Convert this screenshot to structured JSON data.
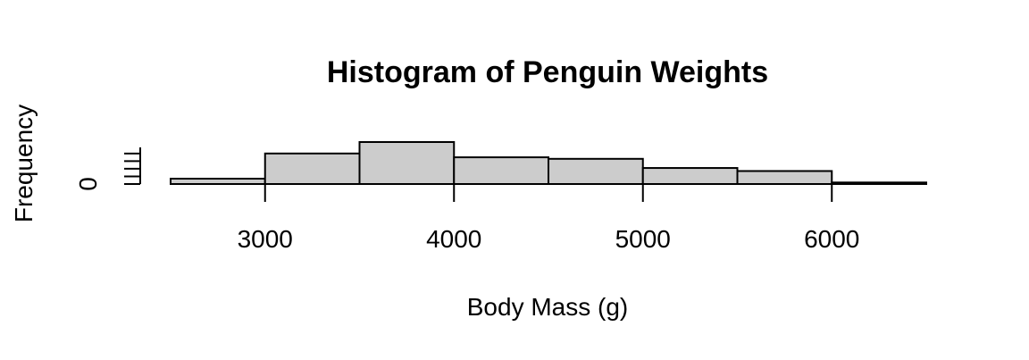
{
  "chart_data": {
    "type": "bar",
    "title": "Histogram of Penguin Weights",
    "xlabel": "Body Mass (g)",
    "ylabel": "Frequency",
    "bins": [
      {
        "start": 2500,
        "end": 3000,
        "count": 7
      },
      {
        "start": 3000,
        "end": 3500,
        "count": 40
      },
      {
        "start": 3500,
        "end": 4000,
        "count": 55
      },
      {
        "start": 4000,
        "end": 4500,
        "count": 35
      },
      {
        "start": 4500,
        "end": 5000,
        "count": 33
      },
      {
        "start": 5000,
        "end": 5500,
        "count": 21
      },
      {
        "start": 5500,
        "end": 6000,
        "count": 17
      },
      {
        "start": 6000,
        "end": 6500,
        "count": 2
      }
    ],
    "xticks": [
      3000,
      4000,
      5000,
      6000
    ],
    "yticks": [
      0
    ],
    "xlim": [
      2500,
      6500
    ],
    "grid": false,
    "legend": false
  }
}
